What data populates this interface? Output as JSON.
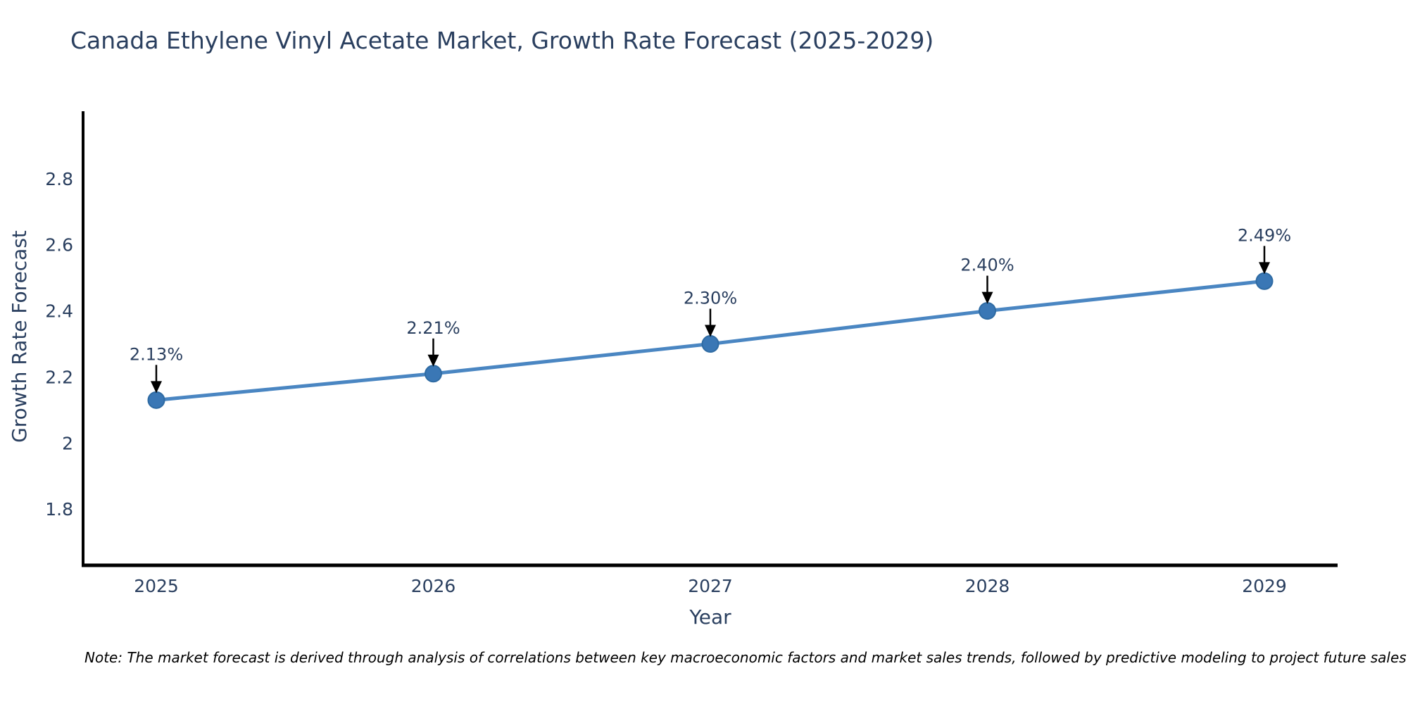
{
  "title": "Canada Ethylene Vinyl Acetate Market, Growth Rate Forecast (2025-2029)",
  "note": "Note: The market forecast is derived through analysis of correlations between key macroeconomic factors and market sales trends, followed by predictive modeling to project future sales",
  "colors": {
    "title_text": "#2a3f5f",
    "tick_text": "#2a3f5f",
    "annotation_text": "#2a3f5f",
    "line": "#4a86c2",
    "marker": "#3a77b5",
    "marker_edge": "#2f6ba3",
    "axis": "#000000",
    "arrow": "#000000",
    "background": "#ffffff"
  },
  "chart_data": {
    "type": "line",
    "title": "Canada Ethylene Vinyl Acetate Market, Growth Rate Forecast (2025-2029)",
    "xlabel": "Year",
    "ylabel": "Growth Rate Forecast",
    "x": [
      2025,
      2026,
      2027,
      2028,
      2029
    ],
    "series": [
      {
        "name": "Growth Rate Forecast",
        "values": [
          2.13,
          2.21,
          2.3,
          2.4,
          2.49
        ]
      }
    ],
    "point_labels": [
      "2.13%",
      "2.21%",
      "2.30%",
      "2.40%",
      "2.49%"
    ],
    "x_tick_labels": [
      "2025",
      "2026",
      "2027",
      "2028",
      "2029"
    ],
    "y_ticks": [
      1.8,
      2,
      2.2,
      2.4,
      2.6,
      2.8
    ],
    "y_tick_labels": [
      "1.8",
      "2",
      "2.2",
      "2.4",
      "2.6",
      "2.8"
    ],
    "ylim": [
      1.63,
      3.0
    ],
    "grid": false,
    "legend": "none",
    "annotations": "each data point labeled with percent value and a black downward arrow"
  }
}
